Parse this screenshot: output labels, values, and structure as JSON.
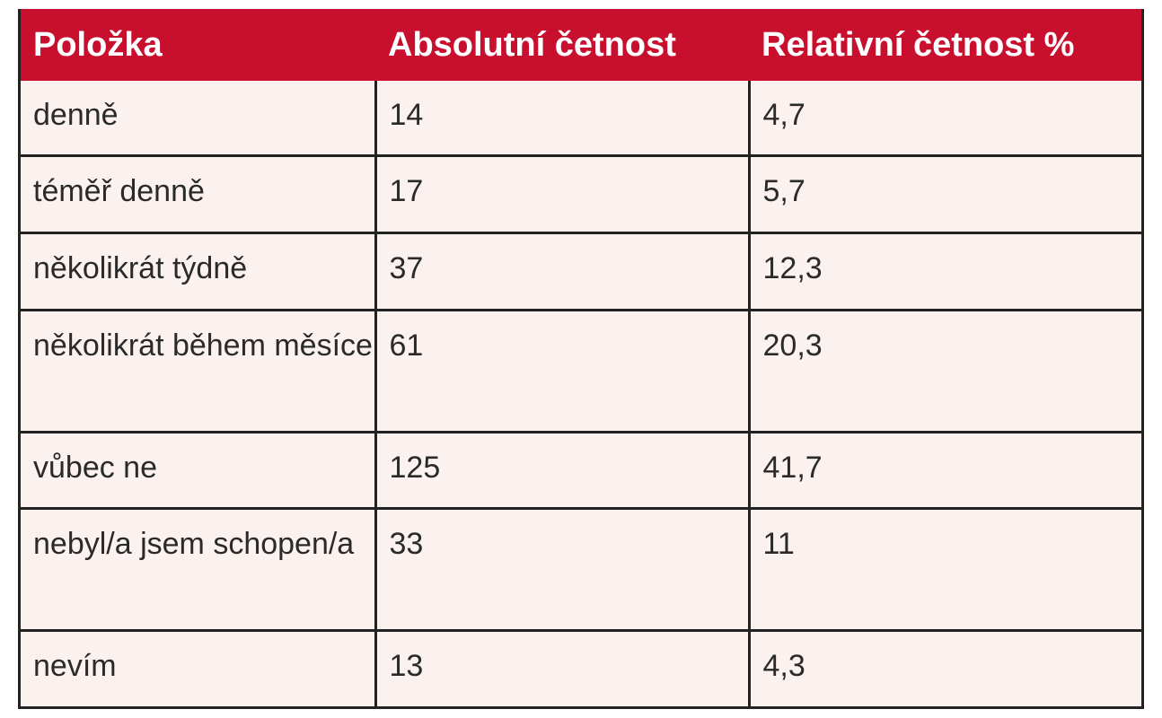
{
  "colors": {
    "header_background": "#c8102e",
    "header_text": "#ffffff",
    "body_background": "#fbf2f0",
    "grid_lines": "#222222"
  },
  "table": {
    "headers": [
      "Položka",
      "Absolutní četnost",
      "Relativní četnost %"
    ],
    "rows": [
      [
        "denně",
        "14",
        "4,7"
      ],
      [
        "téměř denně",
        "17",
        "5,7"
      ],
      [
        "několikrát týdně",
        "37",
        "12,3"
      ],
      [
        "několikrát během měsíce",
        "61",
        "20,3"
      ],
      [
        "vůbec ne",
        "125",
        "41,7"
      ],
      [
        "nebyl/a jsem schopen/a",
        "33",
        "11"
      ],
      [
        "nevím",
        "13",
        "4,3"
      ]
    ]
  }
}
